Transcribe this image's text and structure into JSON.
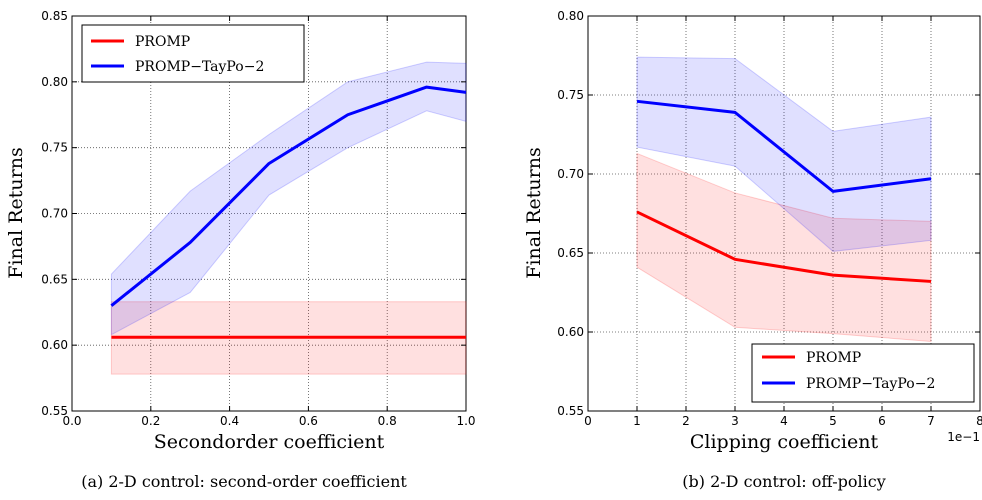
{
  "chart_data": [
    {
      "type": "line",
      "xlabel": "Secondorder coefficient",
      "ylabel": "Final Returns",
      "caption": "(a) 2-D control: second-order coefficient",
      "xlim": [
        0.0,
        1.0
      ],
      "ylim": [
        0.55,
        0.85
      ],
      "xticks": [
        0.0,
        0.2,
        0.4,
        0.6,
        0.8,
        1.0
      ],
      "xtick_labels": [
        "0.0",
        "0.2",
        "0.4",
        "0.6",
        "0.8",
        "1.0"
      ],
      "yticks": [
        0.55,
        0.6,
        0.65,
        0.7,
        0.75,
        0.8,
        0.85
      ],
      "ytick_labels": [
        "0.55",
        "0.60",
        "0.65",
        "0.70",
        "0.75",
        "0.80",
        "0.85"
      ],
      "grid": true,
      "legend_position": "top-left",
      "series": [
        {
          "name": "PROMP",
          "color": "#ff0000",
          "x": [
            0.1,
            0.3,
            0.5,
            0.7,
            0.9,
            1.0
          ],
          "y": [
            0.606,
            0.606,
            0.606,
            0.606,
            0.606,
            0.606
          ],
          "lower": [
            0.578,
            0.578,
            0.578,
            0.578,
            0.578,
            0.578
          ],
          "upper": [
            0.633,
            0.633,
            0.633,
            0.633,
            0.633,
            0.633
          ]
        },
        {
          "name": "PROMP−TayPo−2",
          "color": "#0000ff",
          "x": [
            0.1,
            0.3,
            0.5,
            0.7,
            0.9,
            1.0
          ],
          "y": [
            0.63,
            0.678,
            0.738,
            0.775,
            0.796,
            0.792
          ],
          "lower": [
            0.608,
            0.64,
            0.714,
            0.75,
            0.778,
            0.77
          ],
          "upper": [
            0.654,
            0.717,
            0.76,
            0.8,
            0.815,
            0.814
          ]
        }
      ]
    },
    {
      "type": "line",
      "xlabel": "Clipping coefficient",
      "ylabel": "Final Returns",
      "caption": "(b) 2-D control: off-policy",
      "axis_offset_label": "1e−1",
      "xlim": [
        0,
        8
      ],
      "ylim": [
        0.55,
        0.8
      ],
      "xticks": [
        0,
        1,
        2,
        3,
        4,
        5,
        6,
        7,
        8
      ],
      "xtick_labels": [
        "0",
        "1",
        "2",
        "3",
        "4",
        "5",
        "6",
        "7",
        "8"
      ],
      "yticks": [
        0.55,
        0.6,
        0.65,
        0.7,
        0.75,
        0.8
      ],
      "ytick_labels": [
        "0.55",
        "0.60",
        "0.65",
        "0.70",
        "0.75",
        "0.80"
      ],
      "grid": true,
      "legend_position": "bottom-right",
      "series": [
        {
          "name": "PROMP",
          "color": "#ff0000",
          "x": [
            1,
            3,
            5,
            7
          ],
          "y": [
            0.676,
            0.646,
            0.636,
            0.632
          ],
          "lower": [
            0.641,
            0.603,
            0.599,
            0.594
          ],
          "upper": [
            0.713,
            0.688,
            0.672,
            0.67
          ]
        },
        {
          "name": "PROMP−TayPo−2",
          "color": "#0000ff",
          "x": [
            1,
            3,
            5,
            7
          ],
          "y": [
            0.746,
            0.739,
            0.689,
            0.697
          ],
          "lower": [
            0.717,
            0.705,
            0.651,
            0.658
          ],
          "upper": [
            0.774,
            0.773,
            0.727,
            0.736
          ]
        }
      ]
    }
  ]
}
